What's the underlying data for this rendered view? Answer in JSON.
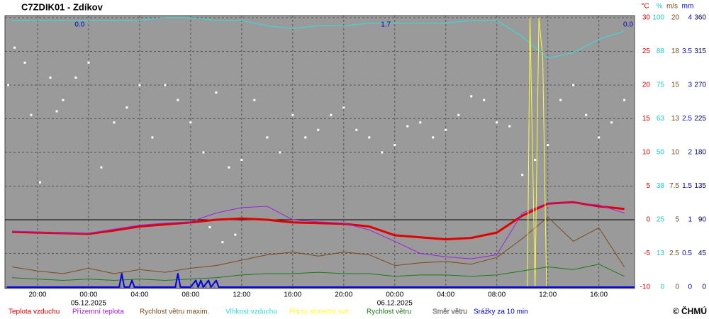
{
  "chart_data": {
    "type": "line",
    "title": "C7ZDIK01 - Zdíkov",
    "credit": "© ČHMÚ",
    "grid": true,
    "zero_line": true,
    "xlim": [
      -6.5,
      42.8
    ],
    "xticks": [
      {
        "value": -4,
        "label": "20:00"
      },
      {
        "value": 0,
        "label": "00:00"
      },
      {
        "value": 4,
        "label": "04:00"
      },
      {
        "value": 8,
        "label": "08:00"
      },
      {
        "value": 12,
        "label": "12:00"
      },
      {
        "value": 16,
        "label": "16:00"
      },
      {
        "value": 20,
        "label": "20:00"
      },
      {
        "value": 24,
        "label": "00:00"
      },
      {
        "value": 28,
        "label": "04:00"
      },
      {
        "value": 32,
        "label": "08:00"
      },
      {
        "value": 36,
        "label": "12:00"
      },
      {
        "value": 40,
        "label": "16:00"
      }
    ],
    "xdates": [
      {
        "value": 0,
        "label": "05.12.2025"
      },
      {
        "value": 24,
        "label": "06.12.2025"
      }
    ],
    "ylabel": "°C",
    "ycolor": "#e00000",
    "ylim": [
      -10,
      30
    ],
    "yticks": [
      -10,
      -5,
      0,
      5,
      10,
      15,
      20,
      25,
      30
    ],
    "right_axes": [
      {
        "id": "y2",
        "label": "%",
        "color": "#20c8c8",
        "lim": [
          0,
          100
        ],
        "ticks": [
          0,
          {
            "value": 12.5,
            "label": "13"
          },
          25,
          {
            "value": 37.5,
            "label": "38"
          },
          50,
          {
            "value": 62.5,
            "label": "63"
          },
          75,
          {
            "value": 87.5,
            "label": "88"
          },
          100
        ]
      },
      {
        "id": "y3",
        "label": "m/s",
        "color": "#7a4a1a",
        "lim": [
          0,
          20
        ],
        "ticks": [
          0,
          2.5,
          5,
          7.5,
          10,
          {
            "value": 12.5,
            "label": "13"
          },
          15,
          {
            "value": 17.5,
            "label": "18"
          },
          20
        ]
      },
      {
        "id": "y4",
        "label": "mm",
        "color": "#0000d0",
        "lim": [
          0,
          4
        ],
        "ticks": [
          0,
          0.5,
          1,
          1.5,
          2,
          2.5,
          3,
          3.5,
          4
        ]
      },
      {
        "id": "y5",
        "color": "#000060",
        "lim": [
          0,
          360
        ],
        "ticks": [
          0,
          45,
          90,
          135,
          180,
          225,
          270,
          315,
          360
        ]
      }
    ],
    "x": [
      -6,
      -4,
      -2,
      0,
      2,
      4,
      6,
      8,
      10,
      12,
      14,
      16,
      18,
      20,
      22,
      24,
      26,
      28,
      30,
      32,
      34,
      36,
      38,
      40,
      42
    ],
    "series": [
      {
        "name": "Teplota vzduchu",
        "color": "#e00000",
        "axis": "y",
        "width": 3,
        "values": [
          -1.8,
          -1.9,
          -2.0,
          -2.1,
          -1.6,
          -1.0,
          -0.7,
          -0.4,
          0.0,
          0.2,
          0.0,
          -0.4,
          -0.5,
          -0.6,
          -1.0,
          -2.3,
          -2.6,
          -2.9,
          -2.7,
          -1.9,
          0.6,
          2.4,
          2.6,
          2.0,
          1.6
        ]
      },
      {
        "name": "Přízemní teplota",
        "color": "#a020e0",
        "axis": "y",
        "width": 1,
        "values": [
          -1.7,
          -1.8,
          -2.0,
          -2.0,
          -1.4,
          -0.8,
          -0.5,
          -0.3,
          1.0,
          1.8,
          2.0,
          0.0,
          -0.3,
          -0.5,
          -1.5,
          -3.2,
          -5.0,
          -5.5,
          -5.8,
          -5.2,
          1.0,
          2.5,
          2.5,
          2.2,
          1.0
        ]
      },
      {
        "name": "Rychlost větru maxim.",
        "color": "#7a4a1a",
        "axis": "y3",
        "width": 1,
        "values": [
          1.5,
          1.2,
          1.0,
          1.4,
          1.0,
          1.3,
          1.1,
          1.4,
          1.6,
          2.0,
          2.4,
          2.6,
          2.3,
          2.6,
          2.4,
          1.6,
          1.8,
          1.9,
          1.7,
          2.2,
          3.6,
          5.2,
          3.4,
          4.4,
          1.5
        ]
      },
      {
        "name": "Vlhkost vzduchu",
        "color": "#30e0e0",
        "axis": "y2",
        "width": 1,
        "values": [
          99,
          99,
          99,
          99,
          99,
          99,
          100,
          100,
          99,
          99,
          97,
          96,
          97,
          97,
          98,
          98,
          98,
          98,
          99,
          99,
          93,
          85,
          87,
          92,
          95
        ]
      },
      {
        "name": "Přímý sluneční svit",
        "color": "#ffff30",
        "axis": "y2",
        "width": 1,
        "x": [
          34.4,
          34.6,
          34.8,
          35.0,
          35.3,
          35.6,
          35.9,
          36.1
        ],
        "values": [
          0,
          100,
          50,
          0,
          100,
          85,
          0,
          0
        ]
      },
      {
        "name": "Rychlost větru",
        "color": "#1a7a1a",
        "axis": "y3",
        "width": 1,
        "values": [
          0.7,
          0.6,
          0.5,
          0.6,
          0.5,
          0.6,
          0.5,
          0.6,
          0.7,
          0.9,
          1.0,
          1.0,
          1.1,
          1.0,
          1.0,
          0.8,
          0.9,
          0.9,
          0.8,
          0.9,
          1.2,
          1.5,
          1.3,
          1.7,
          0.8
        ]
      },
      {
        "name": "Směr větru",
        "color": "#ffffff",
        "axis": "y5",
        "style": "points",
        "x": [
          -6.3,
          -5.8,
          -5,
          -4.5,
          -3.8,
          -3,
          -2.5,
          -2,
          -1,
          0,
          1,
          2,
          3,
          4,
          5,
          6,
          7,
          8,
          9,
          9.5,
          10,
          10.5,
          11,
          11.5,
          12,
          13,
          14,
          15,
          16,
          17,
          18,
          19,
          20,
          21,
          22,
          23,
          24,
          25,
          26,
          27,
          28,
          29,
          30,
          31,
          32,
          33,
          34,
          35,
          36,
          37,
          38,
          39,
          40,
          41,
          42
        ],
        "values": [
          270,
          320,
          300,
          230,
          140,
          280,
          235,
          250,
          280,
          300,
          160,
          220,
          240,
          270,
          200,
          270,
          250,
          220,
          180,
          80,
          260,
          60,
          160,
          70,
          170,
          250,
          200,
          180,
          230,
          200,
          210,
          230,
          240,
          210,
          200,
          180,
          190,
          215,
          220,
          200,
          210,
          230,
          255,
          250,
          220,
          215,
          150,
          170,
          190,
          250,
          270,
          230,
          200,
          220,
          250
        ]
      },
      {
        "name": "Srážky za 10 min",
        "color": "#0000e0",
        "axis": "y4",
        "width": 2,
        "x": [
          -6.4,
          2.4,
          2.6,
          2.8,
          3.2,
          3.4,
          3.6,
          6.8,
          7.0,
          7.2,
          8.0,
          8.4,
          8.6,
          8.8,
          9.0,
          9.4,
          9.6,
          10.0,
          10.2,
          10.6,
          42.8
        ],
        "values": [
          0,
          0,
          0.2,
          0,
          0,
          0.1,
          0,
          0,
          0.2,
          0,
          0,
          0.1,
          0,
          0.1,
          0,
          0.1,
          0,
          0.1,
          0,
          0,
          0
        ]
      }
    ],
    "annotations": [
      {
        "text": "0.0",
        "x": -0.7
      },
      {
        "text": "1.7",
        "x": 23.3
      },
      {
        "text": "0.0",
        "x": 42.3
      }
    ]
  }
}
